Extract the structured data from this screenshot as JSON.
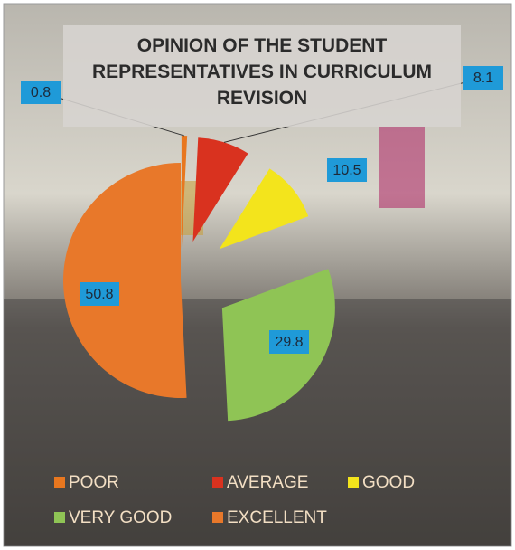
{
  "chart_data": {
    "type": "pie",
    "title": "OPINION OF THE STUDENT REPRESENTATIVES IN CURRICULUM REVISION",
    "categories": [
      "POOR",
      "AVERAGE",
      "GOOD",
      "VERY GOOD",
      "EXCELLENT"
    ],
    "values": [
      0.8,
      8.1,
      10.5,
      29.8,
      50.8
    ],
    "colors": [
      "#e8771f",
      "#d9321f",
      "#f3e41c",
      "#8fc455",
      "#e8782a"
    ]
  }
}
